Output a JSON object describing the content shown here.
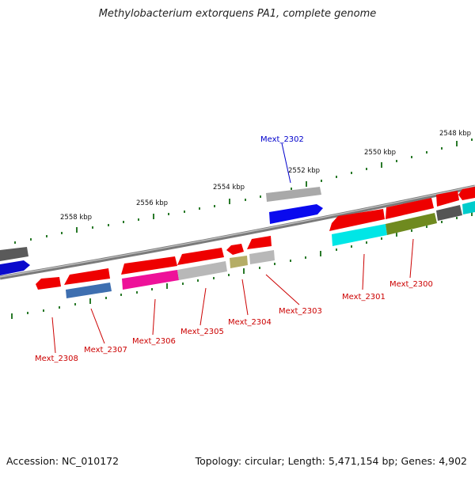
{
  "title": "Methylobacterium extorquens PA1, complete genome",
  "footer": {
    "accession": "Accession: NC_010172",
    "summary": "Topology: circular; Length: 5,471,154 bp; Genes: 4,902"
  },
  "scale_labels": [
    "2548 kbp",
    "2550 kbp",
    "2552 kbp",
    "2554 kbp",
    "2556 kbp",
    "2558 kbp"
  ],
  "gene_labels": [
    {
      "text": "Mext_2302",
      "color": "#0000cc"
    },
    {
      "text": "Mext_2300",
      "color": "#cc0000"
    },
    {
      "text": "Mext_2301",
      "color": "#cc0000"
    },
    {
      "text": "Mext_2303",
      "color": "#cc0000"
    },
    {
      "text": "Mext_2304",
      "color": "#cc0000"
    },
    {
      "text": "Mext_2305",
      "color": "#cc0000"
    },
    {
      "text": "Mext_2306",
      "color": "#cc0000"
    },
    {
      "text": "Mext_2307",
      "color": "#cc0000"
    },
    {
      "text": "Mext_2308",
      "color": "#cc0000"
    }
  ]
}
